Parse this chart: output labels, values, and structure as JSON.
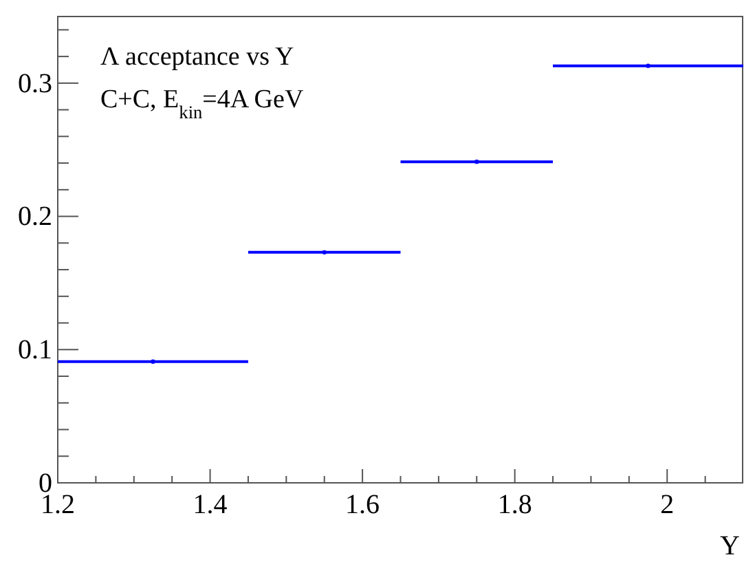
{
  "chart_data": {
    "type": "scatter",
    "title": "Λ acceptance vs Y",
    "subtitle": "C+C, E$_{kin}$=4A GeV",
    "xlabel": "Y",
    "x": [
      1.325,
      1.55,
      1.75,
      1.975
    ],
    "values": [
      0.091,
      0.173,
      0.241,
      0.313
    ],
    "xerrors": [
      0.125,
      0.1,
      0.1,
      0.125
    ],
    "color": "#0000ff",
    "xlim": [
      1.2,
      2.1
    ],
    "xticks": [
      1.2,
      {
        "value": 1.25,
        "label": null
      },
      {
        "value": 1.3,
        "label": null
      },
      {
        "value": 1.35,
        "label": null
      },
      1.4,
      {
        "value": 1.45,
        "label": null
      },
      {
        "value": 1.5,
        "label": null
      },
      {
        "value": 1.55,
        "label": null
      },
      1.6,
      {
        "value": 1.65,
        "label": null
      },
      {
        "value": 1.7,
        "label": null
      },
      {
        "value": 1.75,
        "label": null
      },
      1.8,
      {
        "value": 1.85,
        "label": null
      },
      {
        "value": 1.9,
        "label": null
      },
      {
        "value": 1.95,
        "label": null
      },
      2,
      {
        "value": 2.05,
        "label": null
      }
    ],
    "ylim": [
      0,
      0.35
    ],
    "yticks": [
      0,
      {
        "value": 0.02,
        "label": null
      },
      {
        "value": 0.04,
        "label": null
      },
      {
        "value": 0.06,
        "label": null
      },
      {
        "value": 0.08,
        "label": null
      },
      0.1,
      {
        "value": 0.12,
        "label": null
      },
      {
        "value": 0.14,
        "label": null
      },
      {
        "value": 0.16,
        "label": null
      },
      {
        "value": 0.18,
        "label": null
      },
      0.2,
      {
        "value": 0.22,
        "label": null
      },
      {
        "value": 0.24,
        "label": null
      },
      {
        "value": 0.26,
        "label": null
      },
      {
        "value": 0.28,
        "label": null
      },
      0.3,
      {
        "value": 0.32,
        "label": null
      },
      {
        "value": 0.34,
        "label": null
      }
    ]
  }
}
